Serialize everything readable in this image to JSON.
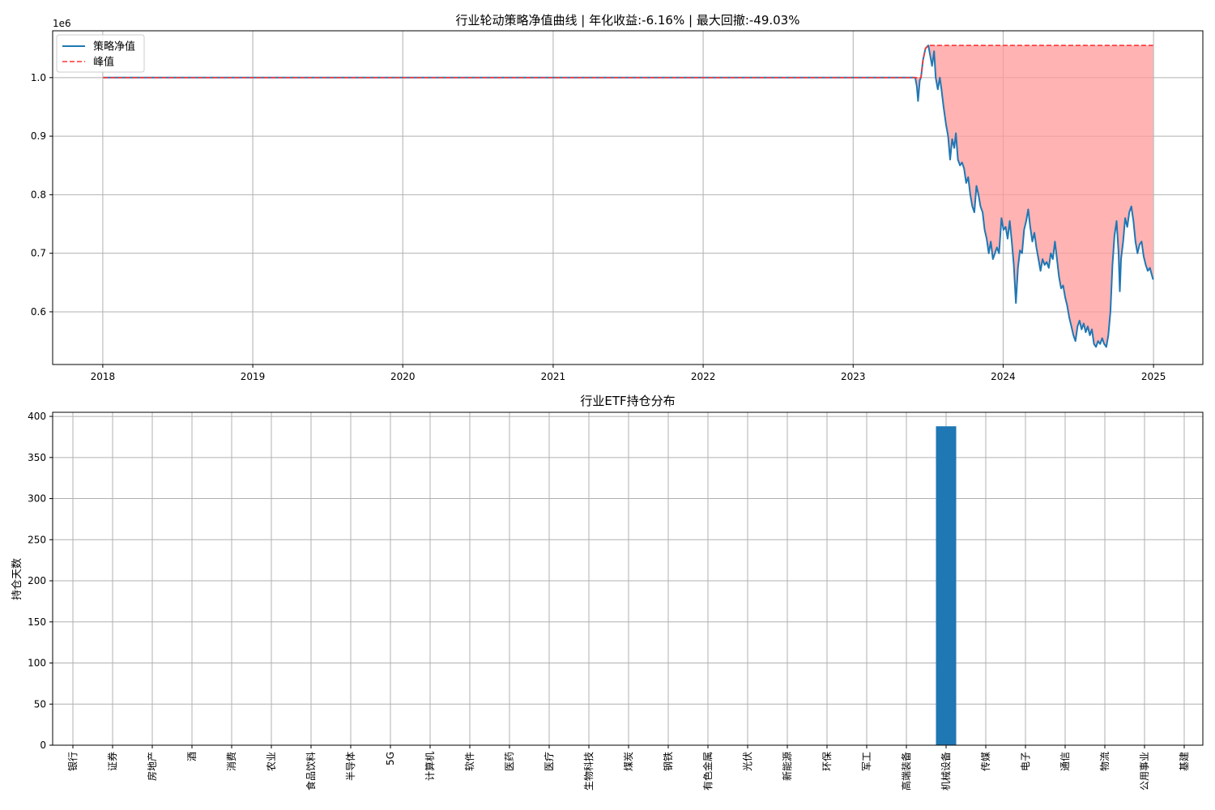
{
  "chart_data": [
    {
      "type": "line",
      "title": "行业轮动策略净值曲线 | 年化收益:-6.16% | 最大回撤:-49.03%",
      "xlabel": "",
      "ylabel": "",
      "y_offset_label": "1e6",
      "grid": true,
      "legend_position": "top-left",
      "x_ticks": [
        "2018",
        "2019",
        "2020",
        "2021",
        "2022",
        "2023",
        "2024",
        "2025"
      ],
      "y_ticks": [
        "0.6",
        "0.7",
        "0.8",
        "0.9",
        "1.0"
      ],
      "xlim": [
        "2017-09-01",
        "2025-05-01"
      ],
      "ylim": [
        510000,
        1080000
      ],
      "drawdown_fill_color": "#ff9999",
      "series": [
        {
          "name": "策略净值",
          "color": "#1f77b4",
          "style": "solid",
          "points": [
            [
              "2018-01-02",
              1000000
            ],
            [
              "2023-06-01",
              1000000
            ],
            [
              "2023-06-05",
              985000
            ],
            [
              "2023-06-08",
              960000
            ],
            [
              "2023-06-12",
              995000
            ],
            [
              "2023-06-15",
              1000000
            ],
            [
              "2023-06-20",
              1030000
            ],
            [
              "2023-06-26",
              1050000
            ],
            [
              "2023-07-03",
              1055000
            ],
            [
              "2023-07-07",
              1040000
            ],
            [
              "2023-07-12",
              1020000
            ],
            [
              "2023-07-17",
              1045000
            ],
            [
              "2023-07-21",
              1000000
            ],
            [
              "2023-07-26",
              980000
            ],
            [
              "2023-07-31",
              1000000
            ],
            [
              "2023-08-04",
              980000
            ],
            [
              "2023-08-09",
              950000
            ],
            [
              "2023-08-15",
              920000
            ],
            [
              "2023-08-20",
              900000
            ],
            [
              "2023-08-25",
              860000
            ],
            [
              "2023-08-30",
              895000
            ],
            [
              "2023-09-04",
              880000
            ],
            [
              "2023-09-08",
              905000
            ],
            [
              "2023-09-13",
              860000
            ],
            [
              "2023-09-18",
              850000
            ],
            [
              "2023-09-23",
              855000
            ],
            [
              "2023-09-28",
              845000
            ],
            [
              "2023-10-03",
              820000
            ],
            [
              "2023-10-08",
              830000
            ],
            [
              "2023-10-13",
              800000
            ],
            [
              "2023-10-18",
              780000
            ],
            [
              "2023-10-23",
              770000
            ],
            [
              "2023-10-28",
              815000
            ],
            [
              "2023-11-02",
              800000
            ],
            [
              "2023-11-07",
              780000
            ],
            [
              "2023-11-12",
              770000
            ],
            [
              "2023-11-17",
              740000
            ],
            [
              "2023-11-22",
              725000
            ],
            [
              "2023-11-27",
              700000
            ],
            [
              "2023-12-02",
              720000
            ],
            [
              "2023-12-07",
              690000
            ],
            [
              "2023-12-12",
              700000
            ],
            [
              "2023-12-17",
              710000
            ],
            [
              "2023-12-22",
              700000
            ],
            [
              "2023-12-28",
              760000
            ],
            [
              "2024-01-02",
              740000
            ],
            [
              "2024-01-07",
              745000
            ],
            [
              "2024-01-12",
              725000
            ],
            [
              "2024-01-17",
              755000
            ],
            [
              "2024-01-22",
              720000
            ],
            [
              "2024-01-27",
              680000
            ],
            [
              "2024-02-01",
              615000
            ],
            [
              "2024-02-06",
              675000
            ],
            [
              "2024-02-11",
              705000
            ],
            [
              "2024-02-16",
              700000
            ],
            [
              "2024-02-21",
              740000
            ],
            [
              "2024-02-26",
              755000
            ],
            [
              "2024-03-02",
              775000
            ],
            [
              "2024-03-07",
              745000
            ],
            [
              "2024-03-12",
              720000
            ],
            [
              "2024-03-17",
              735000
            ],
            [
              "2024-03-22",
              710000
            ],
            [
              "2024-03-27",
              690000
            ],
            [
              "2024-04-01",
              670000
            ],
            [
              "2024-04-06",
              690000
            ],
            [
              "2024-04-11",
              680000
            ],
            [
              "2024-04-16",
              685000
            ],
            [
              "2024-04-21",
              675000
            ],
            [
              "2024-04-26",
              700000
            ],
            [
              "2024-05-01",
              690000
            ],
            [
              "2024-05-06",
              720000
            ],
            [
              "2024-05-11",
              690000
            ],
            [
              "2024-05-16",
              660000
            ],
            [
              "2024-05-21",
              640000
            ],
            [
              "2024-05-26",
              645000
            ],
            [
              "2024-05-31",
              625000
            ],
            [
              "2024-06-05",
              610000
            ],
            [
              "2024-06-10",
              590000
            ],
            [
              "2024-06-15",
              575000
            ],
            [
              "2024-06-20",
              560000
            ],
            [
              "2024-06-25",
              550000
            ],
            [
              "2024-06-30",
              575000
            ],
            [
              "2024-07-05",
              585000
            ],
            [
              "2024-07-10",
              570000
            ],
            [
              "2024-07-15",
              580000
            ],
            [
              "2024-07-20",
              565000
            ],
            [
              "2024-07-25",
              575000
            ],
            [
              "2024-07-30",
              560000
            ],
            [
              "2024-08-04",
              570000
            ],
            [
              "2024-08-09",
              545000
            ],
            [
              "2024-08-14",
              540000
            ],
            [
              "2024-08-19",
              550000
            ],
            [
              "2024-08-24",
              545000
            ],
            [
              "2024-08-29",
              555000
            ],
            [
              "2024-09-03",
              545000
            ],
            [
              "2024-09-08",
              540000
            ],
            [
              "2024-09-13",
              560000
            ],
            [
              "2024-09-18",
              600000
            ],
            [
              "2024-09-23",
              680000
            ],
            [
              "2024-09-28",
              730000
            ],
            [
              "2024-10-03",
              755000
            ],
            [
              "2024-10-08",
              700000
            ],
            [
              "2024-10-11",
              635000
            ],
            [
              "2024-10-14",
              690000
            ],
            [
              "2024-10-19",
              720000
            ],
            [
              "2024-10-24",
              760000
            ],
            [
              "2024-10-29",
              745000
            ],
            [
              "2024-11-03",
              770000
            ],
            [
              "2024-11-08",
              780000
            ],
            [
              "2024-11-13",
              755000
            ],
            [
              "2024-11-18",
              720000
            ],
            [
              "2024-11-23",
              700000
            ],
            [
              "2024-11-28",
              715000
            ],
            [
              "2024-12-03",
              720000
            ],
            [
              "2024-12-08",
              695000
            ],
            [
              "2024-12-13",
              680000
            ],
            [
              "2024-12-18",
              670000
            ],
            [
              "2024-12-23",
              675000
            ],
            [
              "2024-12-31",
              655000
            ]
          ]
        },
        {
          "name": "峰值",
          "color": "#ff3333",
          "style": "dashed",
          "points": [
            [
              "2018-01-02",
              1000000
            ],
            [
              "2023-06-15",
              1000000
            ],
            [
              "2023-06-20",
              1030000
            ],
            [
              "2023-06-26",
              1050000
            ],
            [
              "2023-07-03",
              1055000
            ],
            [
              "2024-12-31",
              1055000
            ]
          ]
        }
      ]
    },
    {
      "type": "bar",
      "title": "行业ETF持仓分布",
      "xlabel": "",
      "ylabel": "持仓天数",
      "grid": true,
      "ylim": [
        0,
        405
      ],
      "y_ticks": [
        0,
        50,
        100,
        150,
        200,
        250,
        300,
        350,
        400
      ],
      "bar_color": "#1f77b4",
      "categories": [
        "银行",
        "证券",
        "房地产",
        "酒",
        "消费",
        "农业",
        "食品饮料",
        "半导体",
        "5G",
        "计算机",
        "软件",
        "医药",
        "医疗",
        "生物科技",
        "煤炭",
        "钢铁",
        "有色金属",
        "光伏",
        "新能源",
        "环保",
        "军工",
        "高端装备",
        "机械设备",
        "传媒",
        "电子",
        "通信",
        "物流",
        "公用事业",
        "基建"
      ],
      "values": [
        0,
        0,
        0,
        0,
        0,
        0,
        0,
        0,
        0,
        0,
        0,
        0,
        0,
        0,
        0,
        0,
        0,
        0,
        0,
        0,
        0,
        0,
        388,
        0,
        0,
        0,
        0,
        0,
        0
      ]
    }
  ]
}
